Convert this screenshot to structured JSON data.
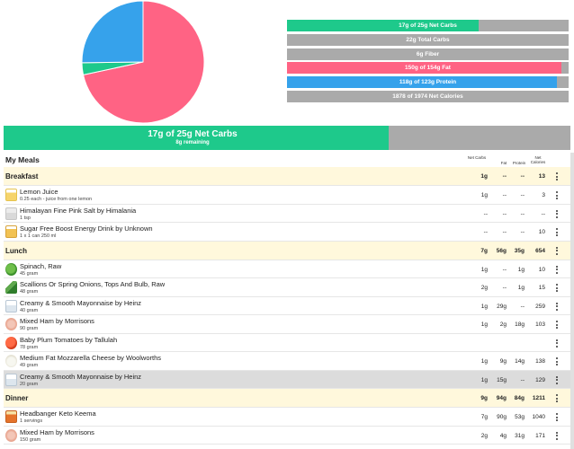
{
  "colors": {
    "carbs": "#1ec98b",
    "total_carbs": "#aaaaaa",
    "fiber": "#aaaaaa",
    "fat": "#ff6384",
    "protein": "#36a2eb",
    "calories": "#aaaaaa",
    "section_bg": "#fff8dc",
    "selected_bg": "#dcdcdc"
  },
  "pie": {
    "slices": [
      {
        "name": "fat",
        "percent": 71.6,
        "color": "#ff6384"
      },
      {
        "name": "carbs",
        "percent": 3.2,
        "color": "#1ec98b"
      },
      {
        "name": "protein",
        "percent": 25.2,
        "color": "#36a2eb"
      }
    ]
  },
  "macro_bars": [
    {
      "label": "17g of 25g Net Carbs",
      "fill_fraction": 0.68,
      "color": "#1ec98b"
    },
    {
      "label": "22g Total Carbs",
      "fill_fraction": 0,
      "color": "#aaaaaa"
    },
    {
      "label": "6g Fiber",
      "fill_fraction": 0,
      "color": "#aaaaaa"
    },
    {
      "label": "150g of 154g Fat",
      "fill_fraction": 0.974,
      "color": "#ff6384"
    },
    {
      "label": "118g of 123g Protein",
      "fill_fraction": 0.96,
      "color": "#36a2eb"
    },
    {
      "label": "1878 of 1974 Net Calories",
      "fill_fraction": 0.951,
      "color": "#aaaaaa"
    }
  ],
  "big_bar": {
    "label": "17g of 25g Net Carbs",
    "sub": "8g remaining",
    "fill_fraction": 0.68
  },
  "meals": {
    "title": "My Meals",
    "columns": [
      "Net Carbs",
      "Fat",
      "Protein",
      "Net Calories"
    ],
    "sections": [
      {
        "name": "Breakfast",
        "totals": [
          "1g",
          "--",
          "--",
          "13"
        ],
        "items": [
          {
            "name": "Lemon Juice",
            "qty": "0.25 each - juice from one lemon",
            "icon": "lemon-juice-icon",
            "cls": "ic-lemon",
            "vals": [
              "1g",
              "--",
              "--",
              "3"
            ]
          },
          {
            "name": "Himalayan Fine Pink Salt by Himalania",
            "qty": "1 tsp",
            "icon": "salt-icon",
            "cls": "ic-salt",
            "vals": [
              "--",
              "--",
              "--",
              "--"
            ]
          },
          {
            "name": "Sugar Free Boost Energy Drink by Unknown",
            "qty": "1 x 1 can 250 ml",
            "icon": "energy-drink-icon",
            "cls": "ic-drink",
            "vals": [
              "--",
              "--",
              "--",
              "10"
            ]
          }
        ]
      },
      {
        "name": "Lunch",
        "totals": [
          "7g",
          "56g",
          "35g",
          "654"
        ],
        "items": [
          {
            "name": "Spinach, Raw",
            "qty": "45 gram",
            "icon": "spinach-icon",
            "cls": "ic-spinach",
            "vals": [
              "1g",
              "--",
              "1g",
              "10"
            ]
          },
          {
            "name": "Scallions Or Spring Onions, Tops And Bulb, Raw",
            "qty": "48 gram",
            "icon": "scallion-icon",
            "cls": "ic-scallion",
            "vals": [
              "2g",
              "--",
              "1g",
              "15"
            ]
          },
          {
            "name": "Creamy & Smooth Mayonnaise by Heinz",
            "qty": "40 gram",
            "icon": "mayonnaise-icon",
            "cls": "ic-mayo",
            "vals": [
              "1g",
              "29g",
              "--",
              "259"
            ]
          },
          {
            "name": "Mixed Ham by Morrisons",
            "qty": "90 gram",
            "icon": "ham-icon",
            "cls": "ic-ham",
            "vals": [
              "1g",
              "2g",
              "18g",
              "103"
            ]
          },
          {
            "name": "Baby Plum Tomatoes by Tallulah",
            "qty": "78 gram",
            "icon": "tomato-icon",
            "cls": "ic-tomato",
            "vals": [
              "",
              "",
              "",
              ""
            ]
          },
          {
            "name": "Medium Fat Mozzarella Cheese by Woolworths",
            "qty": "49 gram",
            "icon": "mozzarella-icon",
            "cls": "ic-cheese",
            "vals": [
              "1g",
              "9g",
              "14g",
              "138"
            ]
          },
          {
            "name": "Creamy & Smooth Mayonnaise by Heinz",
            "qty": "20 gram",
            "icon": "mayonnaise-icon",
            "cls": "ic-mayo",
            "vals": [
              "1g",
              "15g",
              "--",
              "129"
            ],
            "selected": true
          }
        ]
      },
      {
        "name": "Dinner",
        "totals": [
          "9g",
          "94g",
          "84g",
          "1211"
        ],
        "items": [
          {
            "name": "Headbanger Keto Keema",
            "qty": "1 servings",
            "icon": "keema-icon",
            "cls": "ic-keema",
            "vals": [
              "7g",
              "90g",
              "53g",
              "1040"
            ]
          },
          {
            "name": "Mixed Ham by Morrisons",
            "qty": "150 gram",
            "icon": "ham-icon",
            "cls": "ic-ham",
            "vals": [
              "2g",
              "4g",
              "31g",
              "171"
            ]
          }
        ]
      }
    ]
  }
}
